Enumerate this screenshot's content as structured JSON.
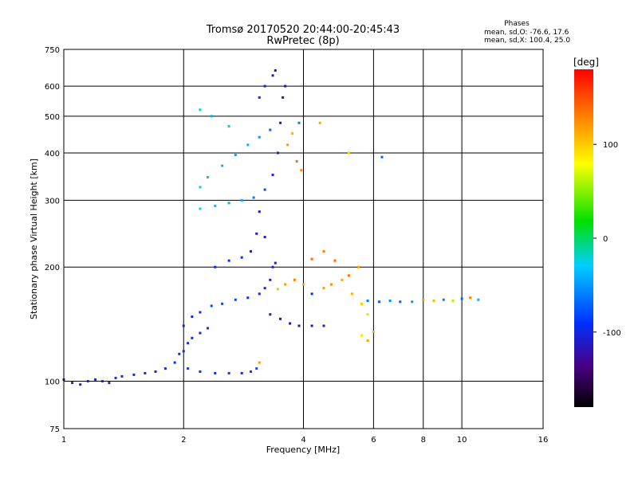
{
  "chart_data": {
    "type": "scatter",
    "title": "Tromsø 20170520 20:44:00-20:45:43",
    "subtitle": "RwPretec (8p)",
    "xlabel": "Frequency [MHz]",
    "ylabel": "Stationary phase Virtual Height [km]",
    "x_scale": "log",
    "y_scale": "log",
    "xlim": [
      1,
      16
    ],
    "ylim": [
      75,
      750
    ],
    "x_ticks": [
      1,
      2,
      4,
      6,
      8,
      10,
      16
    ],
    "y_ticks": [
      75,
      100,
      200,
      300,
      400,
      500,
      600,
      750
    ],
    "grid": true,
    "phase_stats": {
      "heading": "Phases",
      "line_o": "mean, sd,O: -76.6, 17.6",
      "line_x": "mean, sd,X: 100.4, 25.0"
    },
    "colorbar": {
      "label": "[deg]",
      "ticks": [
        100,
        0,
        -100
      ],
      "min": -180,
      "max": 180
    },
    "series": [
      {
        "values": [
          [
            1.0,
            101,
            -95
          ],
          [
            1.05,
            99,
            -95
          ],
          [
            1.1,
            98,
            -100
          ],
          [
            1.15,
            100,
            -95
          ],
          [
            1.2,
            101,
            -90
          ],
          [
            1.25,
            100,
            -100
          ],
          [
            1.3,
            99,
            -95
          ],
          [
            1.35,
            102,
            -95
          ],
          [
            1.4,
            103,
            -90
          ],
          [
            1.5,
            104,
            -95
          ],
          [
            1.6,
            105,
            -100
          ],
          [
            1.7,
            106,
            -95
          ],
          [
            1.8,
            108,
            -95
          ],
          [
            1.9,
            112,
            -90
          ],
          [
            1.95,
            118,
            -95
          ],
          [
            2.0,
            120,
            -90
          ],
          [
            2.05,
            126,
            -95
          ],
          [
            2.1,
            130,
            -90
          ],
          [
            2.2,
            134,
            -95
          ],
          [
            2.3,
            138,
            -90
          ]
        ]
      },
      {
        "values": [
          [
            2.05,
            108,
            -85
          ],
          [
            2.2,
            106,
            -90
          ],
          [
            2.4,
            105,
            -90
          ],
          [
            2.6,
            105,
            -85
          ],
          [
            2.8,
            105,
            -90
          ],
          [
            2.95,
            106,
            -85
          ],
          [
            3.05,
            108,
            -80
          ],
          [
            3.1,
            112,
            120
          ]
        ]
      },
      {
        "values": [
          [
            2.0,
            140,
            -100
          ],
          [
            2.1,
            148,
            -95
          ],
          [
            2.2,
            152,
            -90
          ],
          [
            2.35,
            158,
            -80
          ],
          [
            2.5,
            160,
            -80
          ],
          [
            2.7,
            164,
            -80
          ],
          [
            2.9,
            166,
            -90
          ],
          [
            3.1,
            170,
            -100
          ],
          [
            3.2,
            176,
            -105
          ],
          [
            3.3,
            185,
            -110
          ],
          [
            3.35,
            200,
            -110
          ],
          [
            3.4,
            205,
            -115
          ]
        ]
      },
      {
        "values": [
          [
            2.4,
            200,
            -100
          ],
          [
            2.6,
            208,
            -90
          ],
          [
            2.8,
            212,
            -95
          ],
          [
            2.95,
            220,
            -100
          ],
          [
            3.05,
            245,
            -110
          ],
          [
            3.1,
            280,
            -120
          ],
          [
            3.2,
            240,
            -105
          ]
        ]
      },
      {
        "values": [
          [
            3.3,
            150,
            -110
          ],
          [
            3.5,
            146,
            -125
          ],
          [
            3.7,
            142,
            -130
          ],
          [
            3.9,
            140,
            -125
          ],
          [
            4.2,
            140,
            -120
          ],
          [
            4.5,
            140,
            -110
          ]
        ]
      },
      {
        "values": [
          [
            3.45,
            175,
            100
          ],
          [
            3.6,
            180,
            120
          ],
          [
            3.8,
            185,
            130
          ],
          [
            4.0,
            180,
            110
          ],
          [
            4.2,
            170,
            -90
          ],
          [
            4.5,
            176,
            120
          ],
          [
            4.7,
            180,
            125
          ],
          [
            5.0,
            185,
            115
          ],
          [
            5.3,
            170,
            110
          ],
          [
            5.6,
            160,
            100
          ]
        ]
      },
      {
        "values": [
          [
            4.2,
            210,
            140
          ],
          [
            4.5,
            220,
            130
          ],
          [
            4.8,
            208,
            140
          ],
          [
            5.2,
            190,
            135
          ],
          [
            5.5,
            200,
            120
          ]
        ]
      },
      {
        "values": [
          [
            5.6,
            132,
            90
          ],
          [
            5.8,
            128,
            115
          ],
          [
            6.0,
            135,
            110
          ],
          [
            5.8,
            150,
            95
          ]
        ]
      },
      {
        "values": [
          [
            5.8,
            163,
            -60
          ],
          [
            6.2,
            162,
            -75
          ],
          [
            6.6,
            163,
            -55
          ],
          [
            7.0,
            162,
            -70
          ],
          [
            7.5,
            162,
            -50
          ],
          [
            8.0,
            164,
            120
          ],
          [
            8.5,
            163,
            110
          ],
          [
            9.0,
            164,
            -60
          ],
          [
            9.5,
            163,
            60
          ],
          [
            10.0,
            165,
            -70
          ],
          [
            10.5,
            166,
            130
          ],
          [
            11.0,
            164,
            -40
          ]
        ]
      },
      {
        "values": [
          [
            2.2,
            285,
            -30
          ],
          [
            2.4,
            290,
            -35
          ],
          [
            2.6,
            295,
            -40
          ],
          [
            2.8,
            300,
            -45
          ],
          [
            3.0,
            305,
            -60
          ],
          [
            3.2,
            320,
            -80
          ],
          [
            3.35,
            350,
            -100
          ],
          [
            3.45,
            400,
            -110
          ],
          [
            3.5,
            480,
            -115
          ],
          [
            3.55,
            560,
            -120
          ],
          [
            3.6,
            600,
            -125
          ]
        ]
      },
      {
        "values": [
          [
            2.2,
            325,
            -30
          ],
          [
            2.3,
            345,
            -35
          ],
          [
            2.5,
            370,
            -40
          ],
          [
            2.7,
            395,
            -45
          ],
          [
            2.9,
            420,
            -40
          ],
          [
            3.1,
            440,
            -50
          ],
          [
            3.3,
            460,
            -70
          ]
        ]
      },
      {
        "values": [
          [
            3.65,
            420,
            120
          ],
          [
            3.75,
            450,
            110
          ],
          [
            3.85,
            380,
            135
          ],
          [
            3.95,
            360,
            125
          ],
          [
            3.9,
            480,
            -60
          ]
        ]
      },
      {
        "values": [
          [
            3.1,
            560,
            -95
          ],
          [
            3.2,
            600,
            -105
          ],
          [
            3.35,
            640,
            -115
          ],
          [
            3.4,
            660,
            -120
          ]
        ]
      },
      {
        "values": [
          [
            2.35,
            500,
            -40
          ],
          [
            2.6,
            470,
            -35
          ],
          [
            2.2,
            520,
            -30
          ],
          [
            4.4,
            480,
            115
          ],
          [
            5.2,
            400,
            100
          ],
          [
            6.3,
            390,
            -70
          ]
        ]
      }
    ]
  }
}
